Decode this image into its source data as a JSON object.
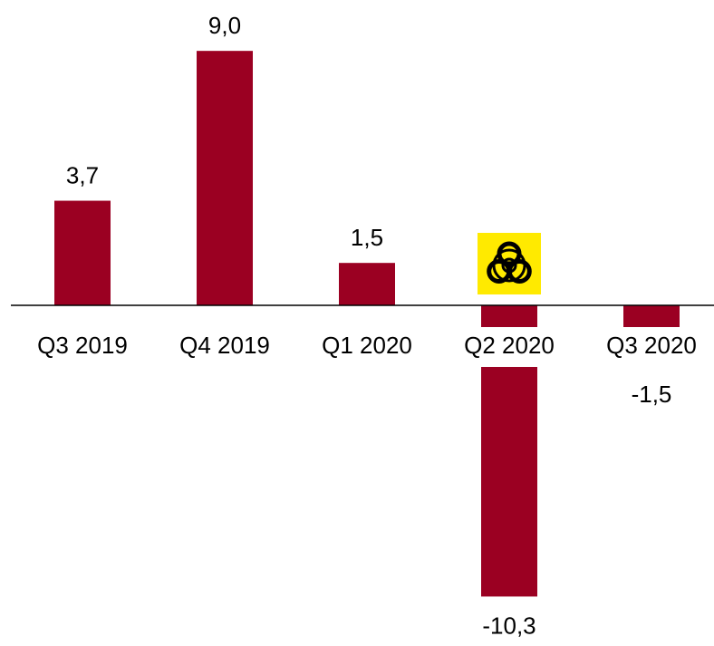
{
  "chart_data": {
    "type": "bar",
    "categories": [
      "Q3 2019",
      "Q4 2019",
      "Q1 2020",
      "Q2 2020",
      "Q3 2020"
    ],
    "values": [
      3.7,
      9.0,
      1.5,
      -10.3,
      -1.5
    ],
    "value_labels": [
      "3,7",
      "9,0",
      "1,5",
      "-10,3",
      "-1,5"
    ],
    "color": "#9b0022",
    "ylim": [
      -12.05,
      10.8
    ]
  }
}
